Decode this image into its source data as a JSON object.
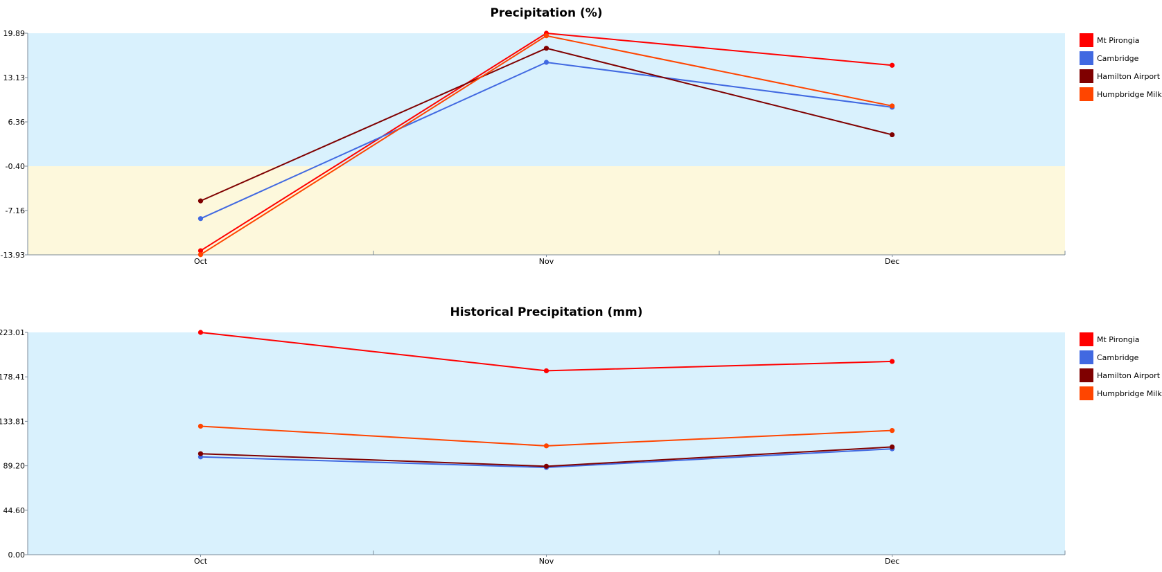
{
  "chart_data": [
    {
      "type": "line",
      "title": "Precipitation (%)",
      "xlabel": "",
      "ylabel": "",
      "categories": [
        "Oct",
        "Nov",
        "Dec"
      ],
      "ylim": [
        -13.93,
        19.89
      ],
      "yticks": [
        "19.89",
        "13.13",
        "6.36",
        "-0.40",
        "-7.16",
        "-13.93"
      ],
      "bands": [
        {
          "from": -0.4,
          "to": 19.89,
          "color": "#d9f1fd"
        },
        {
          "from": -13.93,
          "to": -0.4,
          "color": "#fdf8dc"
        }
      ],
      "legend_position": "right",
      "series": [
        {
          "name": "Mt Pirongia",
          "color": "#ff0000",
          "values": [
            -13.3,
            19.89,
            15.0
          ]
        },
        {
          "name": "Cambridge",
          "color": "#4169e1",
          "values": [
            -8.4,
            15.45,
            8.6
          ]
        },
        {
          "name": "Hamilton Airport",
          "color": "#7f0000",
          "values": [
            -5.7,
            17.6,
            4.4
          ]
        },
        {
          "name": "Humpbridge Milk",
          "color": "#ff4500",
          "values": [
            -13.9,
            19.5,
            8.8
          ]
        }
      ]
    },
    {
      "type": "line",
      "title": "Historical Precipitation (mm)",
      "xlabel": "",
      "ylabel": "",
      "categories": [
        "Oct",
        "Nov",
        "Dec"
      ],
      "ylim": [
        0,
        223.01
      ],
      "yticks": [
        "223.01",
        "178.41",
        "133.81",
        "89.20",
        "44.60",
        "0.00"
      ],
      "bands": [
        {
          "from": 0,
          "to": 223.01,
          "color": "#d9f1fd"
        }
      ],
      "legend_position": "right",
      "series": [
        {
          "name": "Mt Pirongia",
          "color": "#ff0000",
          "values": [
            223.0,
            184.5,
            193.9
          ]
        },
        {
          "name": "Cambridge",
          "color": "#4169e1",
          "values": [
            98.1,
            87.5,
            106.2
          ]
        },
        {
          "name": "Hamilton Airport",
          "color": "#7f0000",
          "values": [
            101.3,
            88.7,
            108.1
          ]
        },
        {
          "name": "Humpbridge Milk",
          "color": "#ff4500",
          "values": [
            128.9,
            109.2,
            124.6
          ]
        }
      ]
    }
  ]
}
